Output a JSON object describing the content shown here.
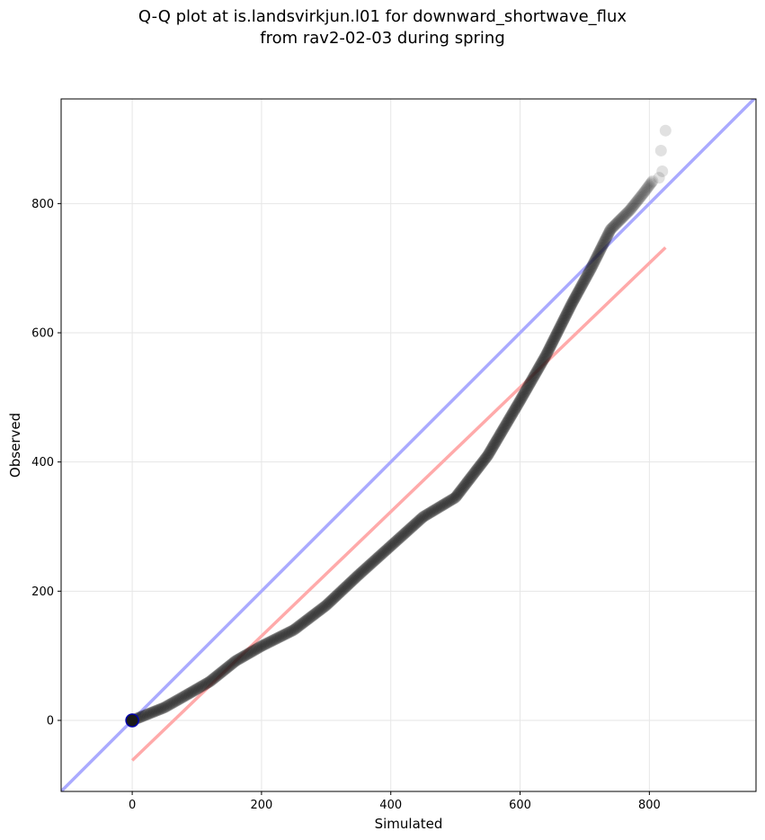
{
  "title_line1": "Q-Q plot at is.landsvirkjun.l01 for downward_shortwave_flux",
  "title_line2": "from rav2-02-03 during spring",
  "colors": {
    "points": "#1a1a1a",
    "identity_line": "#aaaaff",
    "fit_line": "#ffaaaa",
    "grid": "#e6e6e6"
  },
  "chart_data": {
    "type": "scatter",
    "xlabel": "Simulated",
    "ylabel": "Observed",
    "xlim": [
      -110,
      965
    ],
    "ylim": [
      -110,
      962
    ],
    "xticks": [
      0,
      200,
      400,
      600,
      800
    ],
    "yticks": [
      0,
      200,
      400,
      600,
      800
    ],
    "grid": true,
    "reference_line_identity": {
      "from": [
        -110,
        -110
      ],
      "to": [
        965,
        965
      ]
    },
    "reference_line_fit": {
      "from": [
        0,
        -62
      ],
      "to": [
        825,
        732
      ]
    },
    "quantile_curve": [
      [
        0,
        0
      ],
      [
        20,
        8
      ],
      [
        50,
        20
      ],
      [
        80,
        37
      ],
      [
        120,
        60
      ],
      [
        160,
        92
      ],
      [
        200,
        115
      ],
      [
        250,
        140
      ],
      [
        300,
        178
      ],
      [
        350,
        225
      ],
      [
        400,
        270
      ],
      [
        450,
        315
      ],
      [
        500,
        345
      ],
      [
        550,
        410
      ],
      [
        600,
        495
      ],
      [
        640,
        565
      ],
      [
        680,
        645
      ],
      [
        710,
        700
      ],
      [
        740,
        760
      ],
      [
        770,
        790
      ],
      [
        790,
        815
      ],
      [
        805,
        835
      ]
    ],
    "tail_points": [
      [
        815,
        840
      ],
      [
        820,
        850
      ],
      [
        818,
        882
      ],
      [
        825,
        913
      ]
    ]
  }
}
